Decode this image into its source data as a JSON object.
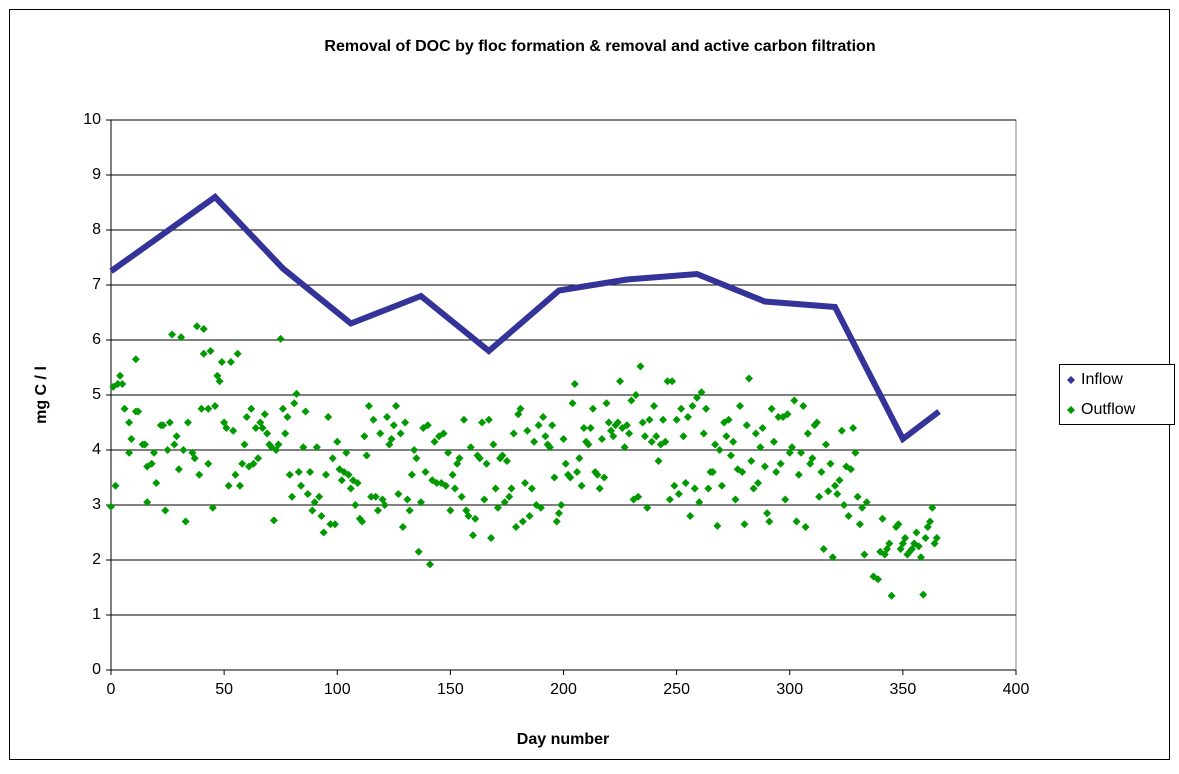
{
  "chart_data": {
    "type": "scatter",
    "title": "Removal of DOC by floc formation & removal and active carbon filtration",
    "x_label": "Day number",
    "y_label": "mg C / l",
    "xlim": [
      0,
      400
    ],
    "xticks": [
      0,
      50,
      100,
      150,
      200,
      250,
      300,
      350,
      400
    ],
    "ylim": [
      0,
      10
    ],
    "yticks": [
      0,
      1,
      2,
      3,
      4,
      5,
      6,
      7,
      8,
      9,
      10
    ],
    "grid": true,
    "legend": "right",
    "series": [
      {
        "name": "Inflow",
        "color": "#333399",
        "line": true,
        "x": [
          0,
          46,
          76,
          106,
          137,
          167,
          198,
          228,
          259,
          289,
          320,
          350,
          366
        ],
        "values": [
          7.25,
          8.6,
          7.3,
          6.3,
          6.8,
          5.8,
          6.9,
          7.1,
          7.2,
          6.7,
          6.6,
          4.2,
          4.7
        ]
      },
      {
        "name": "Outflow",
        "color": "#009900",
        "line": false,
        "x": [
          0,
          1,
          2,
          3,
          4,
          5,
          6,
          8,
          8,
          9,
          11,
          11,
          12,
          14,
          15,
          16,
          16,
          18,
          19,
          20,
          22,
          23,
          24,
          25,
          26,
          27,
          28,
          29,
          30,
          31,
          32,
          33,
          34,
          36,
          37,
          38,
          39,
          40,
          41,
          41,
          43,
          43,
          44,
          45,
          46,
          47,
          48,
          49,
          50,
          51,
          52,
          53,
          54,
          55,
          56,
          57,
          58,
          59,
          60,
          61,
          62,
          63,
          64,
          65,
          66,
          67,
          68,
          69,
          70,
          71,
          72,
          73,
          74,
          75,
          76,
          77,
          78,
          79,
          80,
          81,
          82,
          83,
          84,
          85,
          86,
          87,
          88,
          89,
          90,
          91,
          92,
          93,
          94,
          95,
          96,
          97,
          98,
          99,
          100,
          101,
          102,
          103,
          104,
          105,
          106,
          107,
          108,
          109,
          110,
          111,
          112,
          113,
          114,
          115,
          116,
          117,
          118,
          119,
          120,
          121,
          122,
          123,
          124,
          125,
          126,
          127,
          128,
          129,
          130,
          131,
          132,
          133,
          134,
          135,
          136,
          137,
          138,
          139,
          140,
          141,
          142,
          143,
          144,
          145,
          146,
          147,
          148,
          149,
          150,
          151,
          152,
          153,
          154,
          155,
          156,
          157,
          158,
          159,
          160,
          161,
          162,
          163,
          164,
          165,
          166,
          167,
          168,
          169,
          170,
          171,
          172,
          173,
          174,
          175,
          176,
          177,
          178,
          179,
          180,
          181,
          182,
          183,
          184,
          185,
          186,
          187,
          188,
          189,
          190,
          191,
          192,
          193,
          194,
          195,
          196,
          197,
          198,
          199,
          200,
          201,
          202,
          203,
          204,
          205,
          206,
          207,
          208,
          209,
          210,
          211,
          212,
          213,
          214,
          215,
          216,
          217,
          218,
          219,
          220,
          221,
          222,
          223,
          224,
          225,
          226,
          227,
          228,
          229,
          230,
          231,
          232,
          233,
          234,
          235,
          236,
          237,
          238,
          239,
          240,
          241,
          242,
          243,
          244,
          245,
          246,
          247,
          248,
          249,
          250,
          251,
          252,
          253,
          254,
          255,
          256,
          257,
          258,
          259,
          260,
          261,
          262,
          263,
          264,
          265,
          266,
          267,
          268,
          269,
          270,
          271,
          272,
          273,
          274,
          275,
          276,
          277,
          278,
          279,
          280,
          281,
          282,
          283,
          284,
          285,
          286,
          287,
          288,
          289,
          290,
          291,
          292,
          293,
          294,
          295,
          296,
          297,
          298,
          299,
          300,
          301,
          302,
          303,
          304,
          305,
          306,
          307,
          308,
          309,
          310,
          311,
          312,
          313,
          314,
          315,
          316,
          317,
          318,
          319,
          320,
          321,
          322,
          323,
          324,
          325,
          326,
          327,
          328,
          329,
          330,
          331,
          332,
          333,
          334,
          337,
          339,
          340,
          341,
          342,
          343,
          344,
          345,
          347,
          348,
          349,
          350,
          351,
          352,
          353,
          354,
          355,
          356,
          357,
          358,
          359,
          360,
          361,
          362,
          363,
          364,
          365
        ],
        "values": [
          2.97,
          5.15,
          3.35,
          5.2,
          5.35,
          5.2,
          4.75,
          3.95,
          4.5,
          4.2,
          4.7,
          5.65,
          4.7,
          4.1,
          4.1,
          3.05,
          3.7,
          3.75,
          3.95,
          3.4,
          4.45,
          4.45,
          2.9,
          4.0,
          4.5,
          6.1,
          4.1,
          4.25,
          3.65,
          6.05,
          4.0,
          2.7,
          4.5,
          3.95,
          3.85,
          6.25,
          3.55,
          4.75,
          5.75,
          6.2,
          3.75,
          4.75,
          5.8,
          2.95,
          4.8,
          5.35,
          5.25,
          5.6,
          4.5,
          4.4,
          3.35,
          5.6,
          4.35,
          3.55,
          5.75,
          3.35,
          3.75,
          4.1,
          4.6,
          3.7,
          4.75,
          3.75,
          4.4,
          3.85,
          4.5,
          4.4,
          4.65,
          4.3,
          4.1,
          4.05,
          2.72,
          4.0,
          4.1,
          6.02,
          4.75,
          4.3,
          4.6,
          3.55,
          3.15,
          4.85,
          5.02,
          3.6,
          3.35,
          4.05,
          4.7,
          3.2,
          3.6,
          2.9,
          3.05,
          4.05,
          3.15,
          2.8,
          2.5,
          3.55,
          4.6,
          2.65,
          3.85,
          2.65,
          4.15,
          3.65,
          3.45,
          3.6,
          3.95,
          3.55,
          3.3,
          3.45,
          3.0,
          3.4,
          2.75,
          2.7,
          4.25,
          3.9,
          4.8,
          3.15,
          4.55,
          3.15,
          2.9,
          4.3,
          3.1,
          3.0,
          4.6,
          4.1,
          4.2,
          4.45,
          4.8,
          3.2,
          4.3,
          2.6,
          4.5,
          3.1,
          2.9,
          3.55,
          4.0,
          3.85,
          2.15,
          3.05,
          4.4,
          3.6,
          4.45,
          1.92,
          3.45,
          4.15,
          3.4,
          4.25,
          3.4,
          4.3,
          3.35,
          3.95,
          2.9,
          3.55,
          3.3,
          3.75,
          3.85,
          3.15,
          4.55,
          2.9,
          2.8,
          4.05,
          2.45,
          2.75,
          3.9,
          3.85,
          4.5,
          3.1,
          3.75,
          4.55,
          2.4,
          4.1,
          3.3,
          2.95,
          3.85,
          3.9,
          3.05,
          3.8,
          3.15,
          3.3,
          4.3,
          2.6,
          4.65,
          4.75,
          2.7,
          3.4,
          4.35,
          2.8,
          3.3,
          4.15,
          3.0,
          4.45,
          2.95,
          4.6,
          4.25,
          4.1,
          4.05,
          4.45,
          3.5,
          2.7,
          2.85,
          3.0,
          4.2,
          3.75,
          3.55,
          3.5,
          4.85,
          5.2,
          3.6,
          3.85,
          3.35,
          4.4,
          4.15,
          4.1,
          4.4,
          4.75,
          3.6,
          3.55,
          3.3,
          4.2,
          3.5,
          4.85,
          4.5,
          4.35,
          4.25,
          4.45,
          4.5,
          5.25,
          4.4,
          4.05,
          4.45,
          4.3,
          4.9,
          3.1,
          5.0,
          3.15,
          5.52,
          4.5,
          4.25,
          2.95,
          4.55,
          4.15,
          4.8,
          4.25,
          3.8,
          4.1,
          4.55,
          4.15,
          5.25,
          3.1,
          5.25,
          3.35,
          4.55,
          3.2,
          4.75,
          4.25,
          3.4,
          4.6,
          2.8,
          4.8,
          3.3,
          4.95,
          3.05,
          5.05,
          4.3,
          4.75,
          3.3,
          3.6,
          3.6,
          4.1,
          2.62,
          4.0,
          3.35,
          4.5,
          4.25,
          4.55,
          3.9,
          4.15,
          3.1,
          3.65,
          4.8,
          3.6,
          2.65,
          4.45,
          5.3,
          3.8,
          3.3,
          4.3,
          3.4,
          4.05,
          4.4,
          3.7,
          2.85,
          2.7,
          4.75,
          4.15,
          3.6,
          4.6,
          3.75,
          4.6,
          3.1,
          4.65,
          3.95,
          4.05,
          4.9,
          2.7,
          3.55,
          3.95,
          4.8,
          2.6,
          4.3,
          3.75,
          3.85,
          4.45,
          4.5,
          3.15,
          3.6,
          2.2,
          4.1,
          3.25,
          3.75,
          2.05,
          3.35,
          3.2,
          3.45,
          4.35,
          3.0,
          3.7,
          2.8,
          3.65,
          4.4,
          3.95,
          3.15,
          2.65,
          2.95,
          2.1,
          3.05,
          1.7,
          1.65,
          2.15,
          2.75,
          2.1,
          2.2,
          2.3,
          1.35,
          2.6,
          2.65,
          2.2,
          2.3,
          2.4,
          2.1,
          2.15,
          2.2,
          2.3,
          2.5,
          2.25,
          2.05,
          1.37,
          2.4,
          2.6,
          2.7,
          2.95,
          2.3,
          2.4
        ]
      }
    ]
  }
}
